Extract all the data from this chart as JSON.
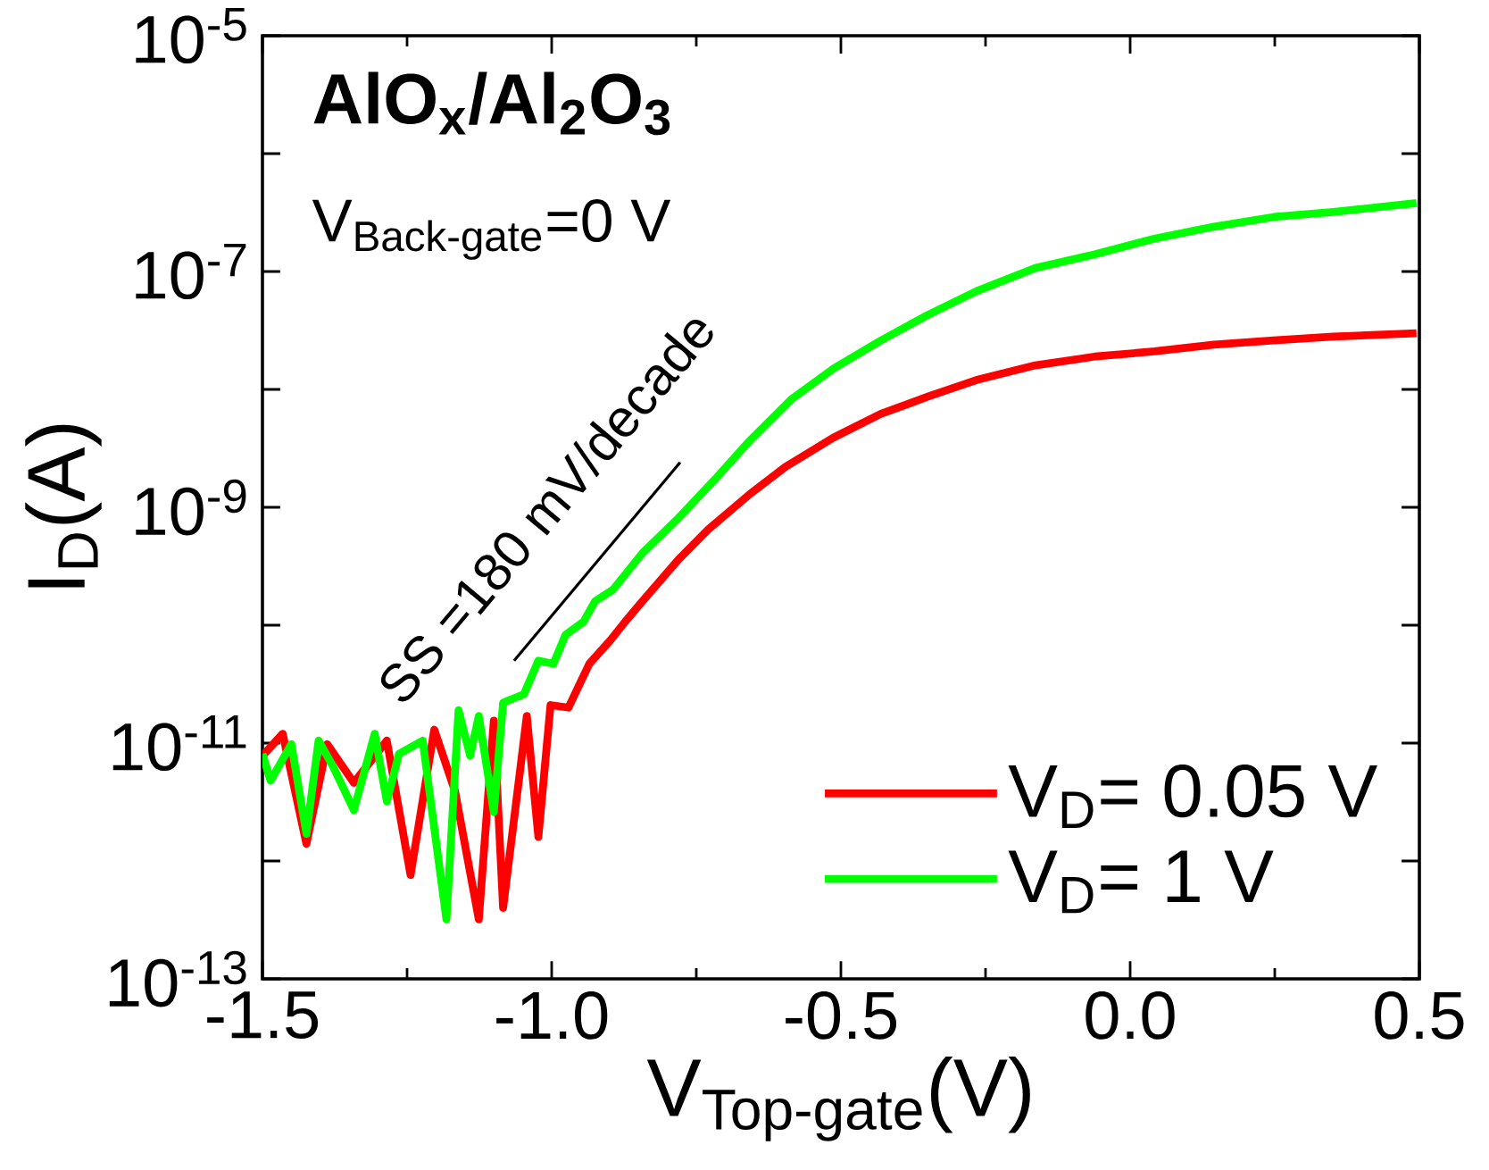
{
  "chart_data": {
    "type": "line",
    "xlabel": "V$_{Top-gate}$(V)",
    "ylabel": "I$_{D}$(A)",
    "log": "y",
    "legend": "bottom right",
    "marker": "none",
    "xlim": [
      -1.5,
      0.5
    ],
    "xticks": [
      {
        "value": -1.5,
        "label": "-1.5"
      },
      {
        "value": -1.0,
        "label": "-1.0"
      },
      {
        "value": -0.5,
        "label": "-0.5"
      },
      {
        "value": 0.0,
        "label": "0.0"
      },
      {
        "value": 0.5,
        "label": "0.5"
      }
    ],
    "ylim": [
      1e-13,
      1e-05
    ],
    "yticks": [
      {
        "value": 1e-13,
        "label": "10$^{-13}$"
      },
      {
        "value": 1e-12,
        "label": null
      },
      {
        "value": 1e-11,
        "label": "10$^{-11}$"
      },
      {
        "value": 1e-10,
        "label": null
      },
      {
        "value": 1e-09,
        "label": "10$^{-9}$"
      },
      {
        "value": 1e-08,
        "label": null
      },
      {
        "value": 1e-07,
        "label": "10$^{-7}$"
      },
      {
        "value": 1e-06,
        "label": null
      },
      {
        "value": 1e-05,
        "label": "10$^{-5}$"
      }
    ],
    "annotations": [
      "AlO$_{x}$/Al$_{2}$O$_{3}$",
      "V$_{Back-gate}$=0 V",
      "SS =180 mV/decade"
    ],
    "series": [
      {
        "name": "V$_{D}$= 0.05 V",
        "color": "#ff0000",
        "x": [
          -1.5,
          -1.465,
          -1.424,
          -1.388,
          -1.342,
          -1.285,
          -1.244,
          -1.203,
          -1.167,
          -1.126,
          -1.1,
          -1.084,
          -1.043,
          -1.023,
          -1.002,
          -0.971,
          -0.935,
          -0.899,
          -0.873,
          -0.843,
          -0.781,
          -0.729,
          -0.657,
          -0.596,
          -0.513,
          -0.431,
          -0.349,
          -0.266,
          -0.164,
          -0.061,
          0.042,
          0.145,
          0.248,
          0.351,
          0.495
        ],
        "values": [
          7.8e-12,
          1.2e-11,
          1.4e-12,
          9.8e-12,
          4.6e-12,
          1.05e-11,
          7.6e-13,
          1.3e-11,
          3.9e-12,
          3.2e-13,
          1.55e-11,
          4e-13,
          1.7e-11,
          1.6e-12,
          2.1e-11,
          2e-11,
          4.7e-11,
          7.4e-11,
          1.07e-10,
          1.6e-10,
          3.6e-10,
          6.5e-10,
          1.3e-09,
          2.2e-09,
          3.9e-09,
          6.2e-09,
          8.7e-09,
          1.2e-08,
          1.6e-08,
          1.9e-08,
          2.1e-08,
          2.4e-08,
          2.6e-08,
          2.8e-08,
          3e-08
        ]
      },
      {
        "name": "V$_{D}$= 1 V",
        "color": "#00ff00",
        "x": [
          -1.5,
          -1.486,
          -1.45,
          -1.424,
          -1.403,
          -1.377,
          -1.342,
          -1.306,
          -1.285,
          -1.264,
          -1.223,
          -1.182,
          -1.161,
          -1.141,
          -1.126,
          -1.1,
          -1.084,
          -1.048,
          -1.023,
          -0.997,
          -0.976,
          -0.945,
          -0.925,
          -0.894,
          -0.843,
          -0.781,
          -0.719,
          -0.657,
          -0.585,
          -0.513,
          -0.431,
          -0.349,
          -0.266,
          -0.164,
          -0.061,
          0.042,
          0.145,
          0.248,
          0.351,
          0.495
        ],
        "values": [
          8.1e-12,
          4.8e-12,
          9.8e-12,
          1.7e-12,
          1.05e-11,
          6.2e-12,
          2.7e-12,
          1.2e-11,
          3.2e-12,
          8.1e-12,
          1.05e-11,
          3.2e-13,
          1.9e-11,
          7.8e-12,
          1.7e-11,
          2.6e-12,
          2.2e-11,
          2.6e-11,
          5e-11,
          4.7e-11,
          8.3e-11,
          1.07e-10,
          1.6e-10,
          2e-10,
          4.1e-10,
          8.1e-10,
          1.7e-09,
          3.7e-09,
          8.3e-09,
          1.5e-08,
          2.6e-08,
          4.3e-08,
          6.8e-08,
          1.07e-07,
          1.4e-07,
          1.9e-07,
          2.4e-07,
          2.9e-07,
          3.2e-07,
          3.8e-07
        ]
      },
      {
        "type": "line",
        "color": "#000000",
        "x": [
          -1.065,
          -0.778
        ],
        "values": [
          5e-11,
          2.4e-09
        ]
      }
    ]
  }
}
